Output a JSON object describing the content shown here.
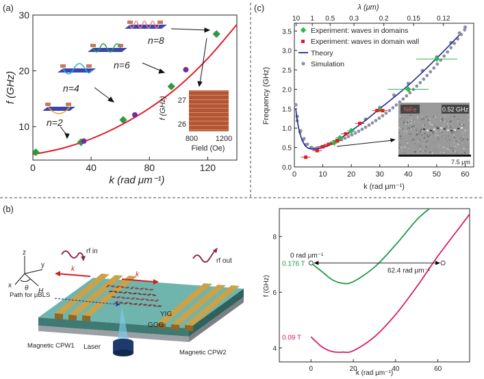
{
  "panels": {
    "a": {
      "label": "(a)",
      "xlabel": "k (rad μm⁻¹)",
      "ylabel": "f (GHz)",
      "modes": [
        "n=2",
        "n=4",
        "n=6",
        "n=8"
      ],
      "inset": {
        "ylabel": "f (GHz)",
        "xlabel": "Field (Oe)",
        "xticks": [
          "800",
          "1200"
        ],
        "yticks": [
          "27",
          "26"
        ]
      }
    },
    "b": {
      "label": "(b)",
      "labels": {
        "rf_in": "rf in",
        "rf_out": "rf out",
        "k1": "k",
        "k2": "k",
        "path": "Path for μBLS",
        "yig": "YIG",
        "ggg": "GGG",
        "laser": "Laser",
        "cpw1": "Magnetic CPW1",
        "cpw2": "Magnetic CPW2",
        "z": "z",
        "y": "y",
        "x": "x",
        "theta": "θ",
        "H": "H"
      },
      "right": {
        "xlabel": "k (rad μm⁻¹)",
        "ylabel": "f (GHz)",
        "field_hi": "0.176 T",
        "field_lo": "0.09 T",
        "ann_left": "0 rad μm⁻¹",
        "ann_right": "62.4 rad μm⁻¹"
      }
    },
    "c": {
      "label": "(c)",
      "toplabel": "λ (μm)",
      "xlabel": "k (rad μm⁻¹)",
      "ylabel": "Frequency (GHz)",
      "legend": [
        "Experiment: waves in domains",
        "Experiment: waves in domain wall",
        "Theory",
        "Simulation"
      ],
      "inset": {
        "material": "NiFe",
        "freq": "0.52 GHz",
        "scale": "7.5 μm"
      }
    }
  },
  "chart_data": [
    {
      "id": "a",
      "type": "scatter",
      "xlim": [
        0,
        140
      ],
      "ylim": [
        4,
        30
      ],
      "xticks": [
        0,
        40,
        80,
        120
      ],
      "yticks": [
        10,
        20,
        30
      ],
      "series": [
        {
          "values": [
            [
              2,
              5.4
            ],
            [
              33,
              7.2
            ],
            [
              62,
              11.2
            ],
            [
              95,
              17.2
            ],
            [
              126,
              26.6
            ]
          ]
        },
        {
          "values": [
            [
              35,
              7.4
            ],
            [
              70,
              12.1
            ],
            [
              105,
              20.2
            ]
          ]
        }
      ],
      "fit": [
        [
          0,
          5
        ],
        [
          20,
          6.1
        ],
        [
          40,
          7.8
        ],
        [
          60,
          10.2
        ],
        [
          80,
          13.3
        ],
        [
          100,
          17.2
        ],
        [
          120,
          22.2
        ],
        [
          140,
          28.3
        ]
      ]
    },
    {
      "id": "c",
      "type": "scatter",
      "xlim": [
        0,
        63
      ],
      "ylim": [
        0,
        3.7
      ],
      "xticks": [
        0,
        10,
        20,
        30,
        40,
        50,
        60
      ],
      "yticks": [
        0,
        0.5,
        1.0,
        1.5,
        2.0,
        2.5,
        3.0,
        3.5
      ],
      "top_ticks": [
        "10",
        "1",
        "0.5",
        "0.3",
        "0.2",
        "0.15",
        "0.12"
      ],
      "series": [
        {
          "name": "Experiment: waves in domains",
          "values": [
            [
              14,
              0.62
            ],
            [
              16,
              0.75
            ],
            [
              20,
              0.93
            ],
            [
              30,
              1.48
            ],
            [
              40,
              2.0
            ],
            [
              50,
              2.78
            ]
          ]
        },
        {
          "name": "Experiment: waves in domain wall",
          "values": [
            [
              4,
              0.25
            ],
            [
              8,
              0.42
            ],
            [
              10,
              0.52
            ],
            [
              12,
              0.58
            ],
            [
              15,
              0.68
            ],
            [
              18,
              0.85
            ],
            [
              23,
              1.12
            ],
            [
              29,
              1.45
            ],
            [
              31,
              1.45
            ]
          ]
        }
      ],
      "theory": [
        [
          0.5,
          1.5
        ],
        [
          1,
          1.2
        ],
        [
          2,
          0.85
        ],
        [
          3,
          0.65
        ],
        [
          4,
          0.53
        ],
        [
          5,
          0.48
        ],
        [
          7,
          0.46
        ],
        [
          10,
          0.5
        ],
        [
          15,
          0.68
        ],
        [
          20,
          0.93
        ],
        [
          25,
          1.2
        ],
        [
          30,
          1.5
        ],
        [
          40,
          2.1
        ],
        [
          50,
          2.8
        ],
        [
          58,
          3.4
        ]
      ],
      "simulation": [
        [
          0.5,
          1.6
        ],
        [
          1,
          1.3
        ],
        [
          2,
          0.9
        ],
        [
          3,
          0.7
        ],
        [
          4,
          0.57
        ],
        [
          6,
          0.5
        ],
        [
          8,
          0.49
        ],
        [
          10,
          0.52
        ],
        [
          13,
          0.62
        ],
        [
          16,
          0.76
        ],
        [
          20,
          0.95
        ],
        [
          25,
          1.23
        ],
        [
          30,
          1.53
        ],
        [
          35,
          1.85
        ],
        [
          40,
          2.15
        ],
        [
          45,
          2.48
        ],
        [
          50,
          2.83
        ],
        [
          55,
          3.2
        ],
        [
          58,
          3.45
        ],
        [
          60,
          3.6
        ]
      ]
    },
    {
      "id": "b-right",
      "type": "line",
      "xlim": [
        -15,
        75
      ],
      "ylim": [
        3.5,
        9
      ],
      "xticks": [
        0,
        20,
        40,
        60
      ],
      "yticks": [
        4,
        6,
        8
      ],
      "series": [
        {
          "name": "0.176 T",
          "values": [
            [
              0,
              7.05
            ],
            [
              5,
              6.75
            ],
            [
              10,
              6.45
            ],
            [
              15,
              6.32
            ],
            [
              20,
              6.38
            ],
            [
              30,
              6.9
            ],
            [
              40,
              7.7
            ],
            [
              50,
              8.6
            ],
            [
              56,
              9.0
            ]
          ]
        },
        {
          "name": "0.09 T",
          "values": [
            [
              0,
              4.4
            ],
            [
              5,
              4.05
            ],
            [
              10,
              3.87
            ],
            [
              15,
              3.85
            ],
            [
              20,
              3.9
            ],
            [
              30,
              4.4
            ],
            [
              40,
              5.2
            ],
            [
              50,
              6.2
            ],
            [
              60,
              7.3
            ],
            [
              70,
              8.3
            ],
            [
              75,
              8.8
            ]
          ]
        }
      ]
    }
  ]
}
